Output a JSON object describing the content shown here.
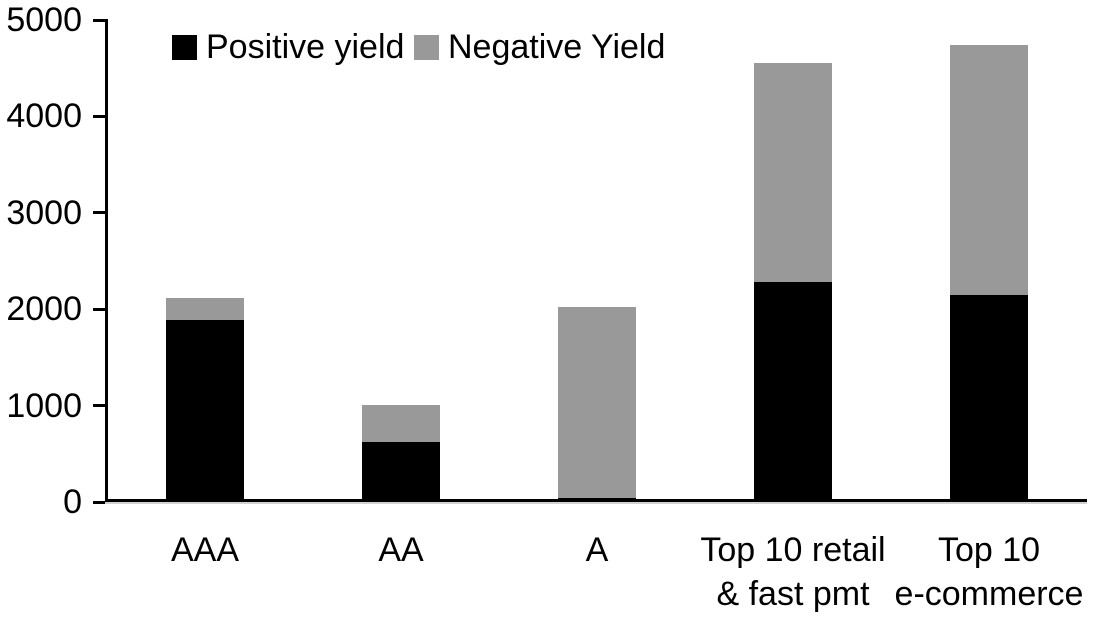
{
  "chart_data": {
    "type": "bar",
    "stacked": true,
    "title": "",
    "xlabel": "",
    "ylabel": "",
    "ylim": [
      0,
      5000
    ],
    "yticks": [
      0,
      1000,
      2000,
      3000,
      4000,
      5000
    ],
    "grid": false,
    "legend_position": "top",
    "categories": [
      "AAA",
      "AA",
      "A",
      "Top 10 retail & fast pmt",
      "Top 10 e-commerce"
    ],
    "category_lines": [
      [
        "AAA"
      ],
      [
        "AA"
      ],
      [
        "A"
      ],
      [
        "Top 10 retail",
        "& fast pmt"
      ],
      [
        "Top 10",
        "e-commerce"
      ]
    ],
    "series": [
      {
        "name": "Positive yield",
        "color": "#000000",
        "values": [
          1890,
          620,
          40,
          2280,
          2150
        ]
      },
      {
        "name": "Negative Yield",
        "color": "#999999",
        "values": [
          225,
          385,
          1980,
          2270,
          2590
        ]
      }
    ],
    "totals": [
      2115,
      1005,
      2020,
      4550,
      4740
    ]
  },
  "colors": {
    "axis": "#000000",
    "positive_series": "#000000",
    "negative_series": "#999999",
    "background": "#ffffff"
  }
}
